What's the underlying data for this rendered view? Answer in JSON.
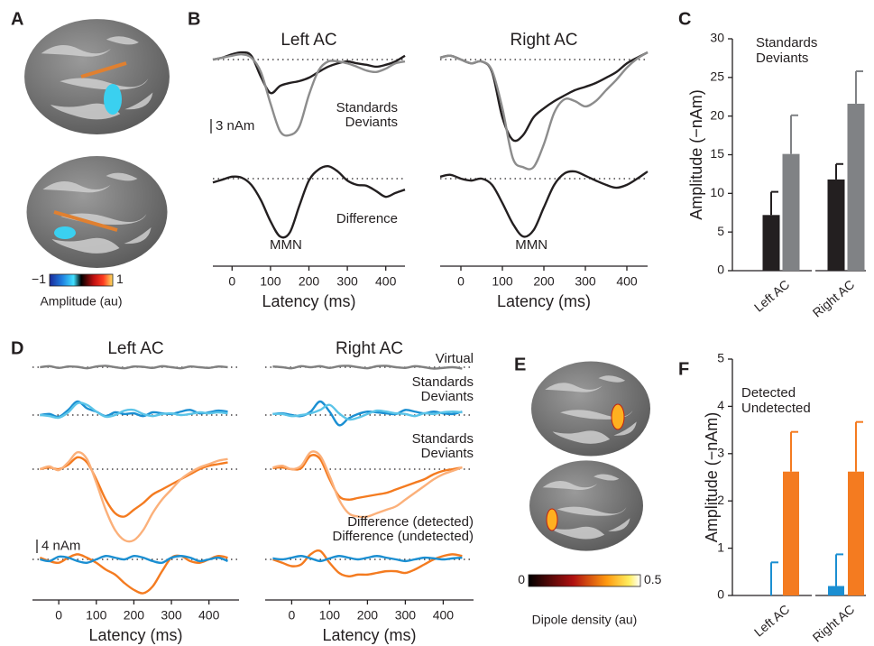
{
  "chart_data": [
    {
      "type": "line",
      "panel": "B",
      "title": "Left AC",
      "xlabel": "Latency (ms)",
      "x": [
        -50,
        -25,
        0,
        25,
        50,
        75,
        100,
        125,
        150,
        175,
        200,
        225,
        250,
        275,
        300,
        325,
        350,
        375,
        400,
        425,
        450
      ],
      "xlim": [
        -50,
        450
      ],
      "xticks": [
        0,
        100,
        200,
        300,
        400
      ],
      "scale_bar": {
        "value": 3,
        "label": "3 nAm"
      },
      "rows": [
        {
          "series": [
            {
              "name": "Standards",
              "color": "#231f20",
              "values": [
                0,
                0.4,
                1.1,
                1.5,
                0.8,
                -3.6,
                -7,
                -5.5,
                -4.9,
                -4.5,
                -3.8,
                -2.6,
                -1.5,
                -0.8,
                -0.4,
                -0.8,
                -1.1,
                -1.5,
                -1.1,
                -0.4,
                0.8
              ]
            },
            {
              "name": "Deviants",
              "color": "#8c8c8c",
              "values": [
                0,
                0.4,
                0.8,
                1.1,
                0.4,
                -2.6,
                -9.2,
                -15,
                -15.8,
                -14,
                -7.4,
                -2.3,
                -0.4,
                -0.4,
                -0.8,
                -1.5,
                -2.3,
                -2.6,
                -1.9,
                -0.8,
                -0.4
              ]
            }
          ]
        },
        {
          "annotation": "MMN",
          "series": [
            {
              "name": "Difference",
              "color": "#231f20",
              "values": [
                -0.8,
                -0.2,
                0.4,
                0.2,
                -1.3,
                -4.5,
                -8.9,
                -12.1,
                -11.3,
                -5.7,
                -0.4,
                1.9,
                2.6,
                1.5,
                -0.4,
                -1.3,
                -1.5,
                -2.6,
                -3.8,
                -3,
                -2.3
              ]
            }
          ]
        }
      ]
    },
    {
      "type": "line",
      "title": "Right AC",
      "xlabel": "Latency (ms)",
      "x": [
        -50,
        -25,
        0,
        25,
        50,
        75,
        100,
        125,
        150,
        175,
        200,
        225,
        250,
        275,
        300,
        325,
        350,
        375,
        400,
        425,
        450
      ],
      "xlim": [
        -50,
        450
      ],
      "xticks": [
        0,
        100,
        200,
        300,
        400
      ],
      "rows": [
        {
          "series": [
            {
              "color": "#231f20",
              "values": [
                0.4,
                0.8,
                0,
                -0.8,
                -0.4,
                -2.6,
                -12.1,
                -16.8,
                -15.8,
                -12.1,
                -10.2,
                -8.7,
                -7.5,
                -6.4,
                -5.7,
                -4.9,
                -3.8,
                -2.6,
                -0.8,
                0.4,
                1.5
              ]
            },
            {
              "color": "#8c8c8c",
              "values": [
                0.4,
                0.8,
                0,
                -0.8,
                -0.4,
                -2.3,
                -10.2,
                -20.6,
                -22.5,
                -22.5,
                -17.7,
                -11.1,
                -8.3,
                -8.7,
                -9.8,
                -8.7,
                -6.4,
                -4.2,
                -1.7,
                0.2,
                1.5
              ]
            }
          ]
        },
        {
          "annotation": "MMN",
          "series": [
            {
              "color": "#231f20",
              "values": [
                0.4,
                0.8,
                0,
                -0.4,
                0,
                -1.3,
                -5.1,
                -9.4,
                -12.1,
                -10.8,
                -6,
                -1.3,
                1.1,
                1.5,
                0.6,
                -0.4,
                -1.3,
                -1.9,
                -1.3,
                0,
                1.5
              ]
            }
          ]
        }
      ]
    },
    {
      "type": "bar",
      "panel": "C",
      "ylabel": "Amplitude (−nAm)",
      "categories": [
        "Left AC",
        "Right AC"
      ],
      "ylim": [
        0,
        30
      ],
      "yticks": [
        0,
        5,
        10,
        15,
        20,
        25,
        30
      ],
      "series": [
        {
          "name": "Standards",
          "color": "#231f20",
          "values": [
            7.2,
            11.8
          ],
          "errors": [
            3.0,
            2.0
          ]
        },
        {
          "name": "Deviants",
          "color": "#808285",
          "values": [
            15.1,
            21.6
          ],
          "errors": [
            5.0,
            4.2
          ]
        }
      ]
    },
    {
      "type": "line",
      "panel": "D",
      "title": "Left AC",
      "xlabel": "Latency (ms)",
      "x": [
        -50,
        -25,
        0,
        25,
        50,
        75,
        100,
        125,
        150,
        175,
        200,
        225,
        250,
        275,
        300,
        325,
        350,
        375,
        400,
        425,
        450
      ],
      "xlim": [
        -70,
        480
      ],
      "xticks": [
        0,
        100,
        200,
        300,
        400
      ],
      "scale_bar": {
        "value": 4,
        "label": "4 nAm"
      },
      "rows": [
        {
          "series": [
            {
              "color": "#808080",
              "values": [
                0,
                0.3,
                -0.2,
                0.2,
                0.1,
                -0.3,
                0.2,
                0.4,
                0,
                -0.3,
                0.2,
                0.1,
                -0.2,
                0.3,
                0,
                -0.3,
                0.2,
                0,
                -0.2,
                0.2,
                0
              ]
            }
          ]
        },
        {
          "series": [
            {
              "color": "#1b8fd2",
              "values": [
                0,
                0.3,
                -0.5,
                1.5,
                4,
                2,
                1,
                -0.3,
                0.8,
                0.3,
                0.5,
                -0.3,
                0.8,
                0.5,
                0.3,
                1,
                1.5,
                0.5,
                0.8,
                1.3,
                1
              ]
            },
            {
              "color": "#5bc4e8",
              "values": [
                0,
                -0.3,
                -0.8,
                0.8,
                3.5,
                3,
                1,
                -0.5,
                0,
                1.3,
                1.5,
                0.3,
                -0.3,
                0.3,
                0.5,
                0,
                0.3,
                0.8,
                0.5,
                0.8,
                0.5
              ]
            }
          ]
        },
        {
          "series": [
            {
              "color": "#f47b20",
              "values": [
                0,
                0.5,
                0,
                1.3,
                3.5,
                2,
                -3,
                -9,
                -13,
                -14,
                -12,
                -10,
                -7.5,
                -6,
                -4.5,
                -3,
                -1.5,
                0,
                1,
                1.5,
                2
              ]
            },
            {
              "color": "#fbb07a",
              "values": [
                0,
                0.8,
                -0.3,
                2,
                5,
                3,
                -4,
                -12,
                -18,
                -21,
                -21,
                -18,
                -13,
                -9,
                -6,
                -3,
                -1,
                0.5,
                1.5,
                2.5,
                3
              ]
            }
          ]
        },
        {
          "series": [
            {
              "color": "#f47b20",
              "values": [
                0.5,
                -0.5,
                -1,
                0.5,
                1.5,
                0.5,
                -1,
                -3,
                -4.5,
                -7,
                -9,
                -10,
                -8,
                -3.5,
                0.5,
                1,
                -0.5,
                -1,
                0,
                1,
                0.5
              ]
            },
            {
              "color": "#1b8fd2",
              "values": [
                0,
                -0.5,
                0.8,
                0.5,
                -0.5,
                -1,
                0,
                1,
                0.5,
                0,
                1,
                0.5,
                -0.5,
                -1,
                0.5,
                1,
                0.5,
                -0.5,
                0,
                0.5,
                -0.5
              ]
            }
          ]
        }
      ]
    },
    {
      "type": "line",
      "title": "Right AC",
      "xlabel": "Latency (ms)",
      "x": [
        -50,
        -25,
        0,
        25,
        50,
        75,
        100,
        125,
        150,
        175,
        200,
        225,
        250,
        275,
        300,
        325,
        350,
        375,
        400,
        425,
        450
      ],
      "xlim": [
        -70,
        480
      ],
      "xticks": [
        0,
        100,
        200,
        300,
        400
      ],
      "rows": [
        {
          "series": [
            {
              "name": "Virtual",
              "color": "#808080",
              "values": [
                0.2,
                0,
                -0.3,
                0.3,
                0,
                0.3,
                -0.2,
                0.3,
                0.4,
                0,
                -0.3,
                0.3,
                0.4,
                0,
                -0.2,
                0.3,
                0,
                -0.4,
                -0.2,
                0,
                -0.4
              ]
            }
          ]
        },
        {
          "series": [
            {
              "name": "Standards",
              "color": "#1b8fd2",
              "values": [
                0.3,
                0.5,
                0,
                -0.3,
                1,
                4,
                1,
                -3,
                -1,
                0.3,
                1,
                0.8,
                0.5,
                0.3,
                1.5,
                1,
                0.5,
                1,
                0.5,
                0.3,
                1
              ]
            },
            {
              "name": "Deviants",
              "color": "#5bc4e8",
              "values": [
                0.3,
                0.3,
                -0.3,
                0,
                0.5,
                1.5,
                3,
                0.5,
                -1.3,
                -0.8,
                0.3,
                1.3,
                1,
                0.5,
                0.3,
                -0.3,
                0.5,
                0.3,
                0.8,
                1,
                0.8
              ]
            }
          ]
        },
        {
          "series": [
            {
              "name": "Standards",
              "color": "#f47b20",
              "values": [
                0.3,
                0.5,
                0,
                0.3,
                4,
                3,
                -3,
                -8,
                -9,
                -8.5,
                -8,
                -7.5,
                -7,
                -6,
                -5,
                -4,
                -3,
                -1.5,
                -0.5,
                0,
                0.5
              ]
            },
            {
              "name": "Deviants",
              "color": "#fbb07a",
              "values": [
                0.5,
                1,
                0,
                1,
                5,
                4,
                -2,
                -9,
                -13,
                -14,
                -14,
                -13,
                -12,
                -11,
                -9,
                -7,
                -5,
                -3,
                -1.5,
                -0.5,
                0.5
              ]
            }
          ]
        },
        {
          "series": [
            {
              "name": "Difference (detected)",
              "color": "#f47b20",
              "values": [
                0,
                -1,
                -2,
                -1.5,
                1.5,
                2.5,
                -1,
                -4,
                -5,
                -4.5,
                -4.5,
                -4,
                -3.5,
                -3.5,
                -4,
                -3,
                -1.5,
                0,
                1,
                1.5,
                1
              ]
            },
            {
              "name": "Difference (undetected)",
              "color": "#1b8fd2",
              "values": [
                0.3,
                0,
                0.5,
                1,
                0.3,
                -0.5,
                0.3,
                1,
                0.5,
                0,
                0.5,
                1,
                0.5,
                0,
                -0.5,
                0,
                0.5,
                0.3,
                0,
                0.3,
                0.5
              ]
            }
          ]
        }
      ]
    },
    {
      "type": "bar",
      "panel": "F",
      "ylabel": "Amplitude (−nAm)",
      "categories": [
        "Left AC",
        "Right AC"
      ],
      "ylim": [
        0,
        5
      ],
      "yticks": [
        0,
        1,
        2,
        3,
        4,
        5
      ],
      "series": [
        {
          "name": "Undetected",
          "color": "#1b8fd2",
          "values": [
            0,
            0.2
          ],
          "errors": [
            0.7,
            0.67
          ]
        },
        {
          "name": "Detected",
          "color": "#f47b20",
          "values": [
            2.62,
            2.62
          ],
          "errors": [
            0.84,
            1.05
          ]
        }
      ]
    }
  ],
  "brain_panels": [
    {
      "panel": "A",
      "colorbar": {
        "lim": [
          -1,
          1
        ],
        "ticks": [
          {
            "value": -1,
            "label": "−1"
          },
          1
        ],
        "label": "Amplitude (au)"
      }
    },
    {
      "panel": "E",
      "colorbar": {
        "lim": [
          0,
          0.5
        ],
        "ticks": [
          0,
          0.5
        ],
        "label": "Dipole density (au)"
      }
    }
  ]
}
